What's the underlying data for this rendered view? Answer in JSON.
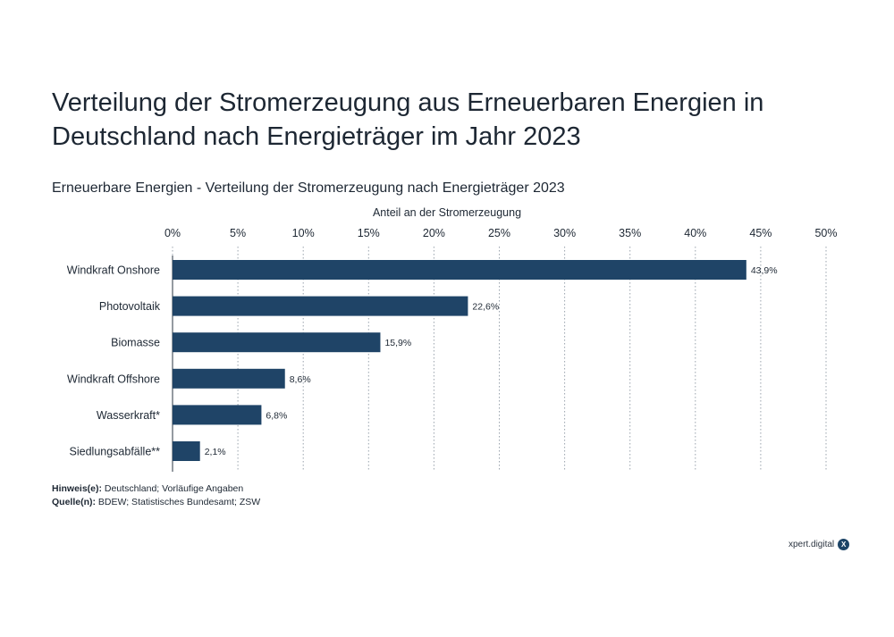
{
  "header": {
    "title": "Verteilung der Stromerzeugung aus Erneuerbaren Energien in Deutschland nach Energieträger im Jahr 2023",
    "subtitle": "Erneuerbare Energien - Verteilung der Stromerzeugung nach Energieträger 2023"
  },
  "chart_data": {
    "type": "bar",
    "orientation": "horizontal",
    "xlabel": "Anteil an der Stromerzeugung",
    "xaxis_position": "top",
    "xlim": [
      0,
      50
    ],
    "xticks": [
      0,
      5,
      10,
      15,
      20,
      25,
      30,
      35,
      40,
      45,
      50
    ],
    "xtick_labels": [
      "0%",
      "5%",
      "10%",
      "15%",
      "20%",
      "25%",
      "30%",
      "35%",
      "40%",
      "45%",
      "50%"
    ],
    "grid": "vertical dotted",
    "bar_color": "#1f4467",
    "categories": [
      "Windkraft Onshore",
      "Photovoltaik",
      "Biomasse",
      "Windkraft Offshore",
      "Wasserkraft*",
      "Siedlungsabfälle**"
    ],
    "values": [
      43.9,
      22.6,
      15.9,
      8.6,
      6.8,
      2.1
    ],
    "value_labels": [
      "43,9%",
      "22,6%",
      "15,9%",
      "8,6%",
      "6,8%",
      "2,1%"
    ]
  },
  "notes": {
    "hinweis_label": "Hinweis(e):",
    "hinweis_text": " Deutschland; Vorläufige Angaben",
    "quelle_label": "Quelle(n):",
    "quelle_text": " BDEW; Statistisches Bundesamt; ZSW"
  },
  "brand": {
    "name": "xpert.digital",
    "badge": "X"
  }
}
